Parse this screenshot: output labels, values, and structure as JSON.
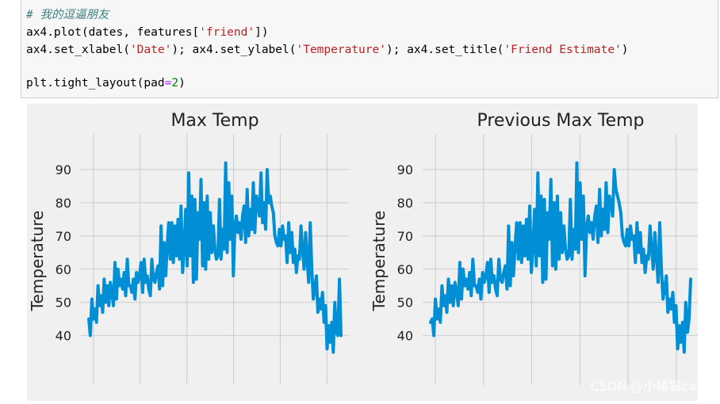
{
  "code": {
    "comment": "# 我的逗逼朋友",
    "line1_prefix": "ax4.plot(dates, features[",
    "line1_str": "'friend'",
    "line1_suffix": "])",
    "line2_a": "ax4.set_xlabel(",
    "line2_s1": "'Date'",
    "line2_b": "); ax4.set_ylabel(",
    "line2_s2": "'Temperature'",
    "line2_c": "); ax4.set_title(",
    "line2_s3": "'Friend Estimate'",
    "line2_d": ")",
    "line4_a": "plt.tight_layout(pad",
    "line4_op": "=",
    "line4_num": "2",
    "line4_b": ")"
  },
  "watermark": "CSDN @小橘猫cate",
  "colors": {
    "line": "#008fd5",
    "plot_bg": "#f0f0f0",
    "grid": "#cbcbcb"
  },
  "chart_data": [
    {
      "type": "line",
      "title": "Max Temp",
      "xlabel": "",
      "ylabel": "Temperature",
      "ylim": [
        33,
        95
      ],
      "yticks": [
        "40",
        "50",
        "60",
        "70",
        "80",
        "90"
      ],
      "grid": true,
      "series": [
        {
          "values": [
            45,
            40,
            51,
            45,
            48,
            44,
            55,
            49,
            52,
            47,
            57,
            50,
            55,
            49,
            56,
            53,
            49,
            62,
            51,
            60,
            55,
            57,
            54,
            59,
            52,
            63,
            55,
            55,
            53,
            57,
            51,
            59,
            56,
            58,
            62,
            53,
            63,
            56,
            58,
            54,
            52,
            63,
            57,
            56,
            59,
            61,
            54,
            73,
            55,
            68,
            58,
            67,
            74,
            63,
            74,
            62,
            73,
            64,
            75,
            63,
            79,
            59,
            66,
            78,
            61,
            89,
            64,
            82,
            56,
            81,
            57,
            77,
            69,
            87,
            61,
            80,
            60,
            82,
            63,
            77,
            65,
            73,
            66,
            63,
            64,
            81,
            63,
            72,
            66,
            92,
            65,
            86,
            69,
            82,
            58,
            73,
            76,
            71,
            74,
            69,
            76,
            79,
            68,
            84,
            70,
            78,
            72,
            86,
            71,
            82,
            80,
            76,
            89,
            74,
            80,
            72,
            90,
            80,
            82,
            79,
            77,
            70,
            68,
            67,
            72,
            67,
            73,
            69,
            70,
            62,
            74,
            65,
            71,
            62,
            66,
            59,
            64,
            63,
            73,
            66,
            60,
            71,
            63,
            56,
            74,
            60,
            51,
            54,
            58,
            47,
            51,
            48,
            53,
            44,
            49,
            36,
            43,
            38,
            44,
            35,
            50,
            41,
            40,
            57,
            40
          ]
        }
      ]
    },
    {
      "type": "line",
      "title": "Previous Max Temp",
      "xlabel": "",
      "ylabel": "Temperature",
      "ylim": [
        33,
        95
      ],
      "yticks": [
        "40",
        "50",
        "60",
        "70",
        "80",
        "90"
      ],
      "grid": true,
      "series": [
        {
          "values": [
            44,
            45,
            40,
            51,
            45,
            48,
            44,
            55,
            49,
            52,
            47,
            57,
            50,
            55,
            49,
            56,
            53,
            49,
            62,
            51,
            60,
            55,
            57,
            54,
            59,
            52,
            63,
            55,
            55,
            53,
            57,
            51,
            59,
            56,
            58,
            62,
            53,
            63,
            56,
            58,
            54,
            52,
            63,
            57,
            56,
            59,
            61,
            54,
            73,
            55,
            68,
            58,
            67,
            74,
            63,
            74,
            62,
            73,
            64,
            75,
            63,
            79,
            59,
            66,
            78,
            61,
            89,
            64,
            82,
            56,
            81,
            57,
            77,
            69,
            87,
            61,
            80,
            60,
            82,
            63,
            77,
            65,
            73,
            66,
            63,
            64,
            81,
            63,
            72,
            66,
            92,
            65,
            86,
            69,
            82,
            58,
            73,
            76,
            71,
            74,
            69,
            76,
            79,
            68,
            84,
            70,
            78,
            72,
            86,
            71,
            82,
            80,
            76,
            90,
            84,
            82,
            80,
            77,
            70,
            68,
            67,
            72,
            67,
            73,
            69,
            70,
            62,
            74,
            65,
            71,
            62,
            66,
            59,
            64,
            63,
            73,
            66,
            60,
            71,
            63,
            56,
            74,
            60,
            51,
            54,
            58,
            47,
            51,
            48,
            53,
            44,
            49,
            36,
            43,
            38,
            44,
            35,
            50,
            41,
            45,
            57
          ]
        }
      ]
    }
  ]
}
